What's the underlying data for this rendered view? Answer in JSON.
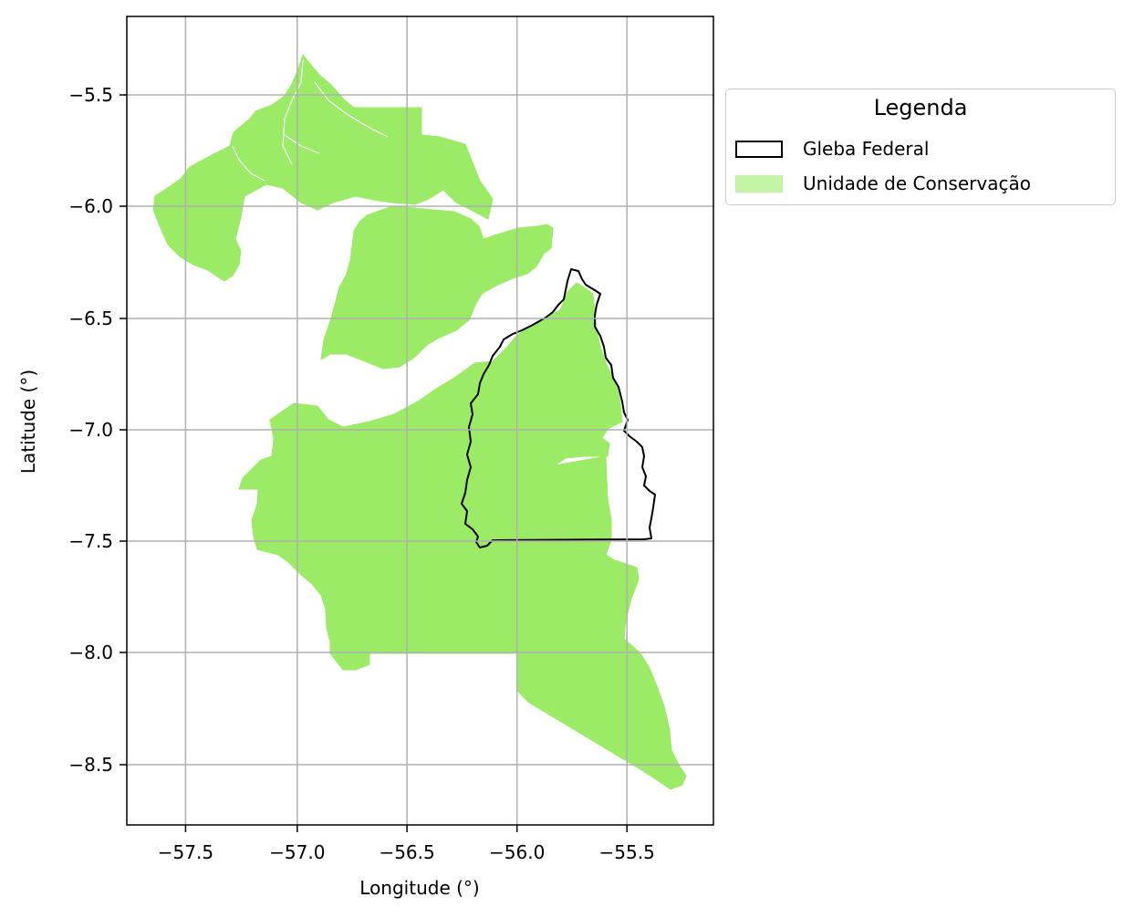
{
  "map": {
    "xlabel": "Longitude (°)",
    "ylabel": "Latitude (°)",
    "x_ticks": [
      "−57.5",
      "−57.0",
      "−56.5",
      "−56.0",
      "−55.5"
    ],
    "y_ticks": [
      "−5.5",
      "−6.0",
      "−6.5",
      "−7.0",
      "−7.5",
      "−8.0",
      "−8.5"
    ],
    "xlim": [
      -57.78,
      -55.15
    ],
    "ylim": [
      -8.78,
      -5.15
    ],
    "grid": true,
    "colors": {
      "conservation_fill": "#9beb67",
      "gleba_outline": "#000000",
      "grid": "#b0b0b0",
      "legend_swatch_fill": "#c3f3a4"
    }
  },
  "legend": {
    "title": "Legenda",
    "placement": "outside-right-top",
    "items": [
      {
        "label": "Gleba Federal",
        "style": "outline"
      },
      {
        "label": "Unidade de Conservação",
        "style": "fill"
      }
    ]
  }
}
